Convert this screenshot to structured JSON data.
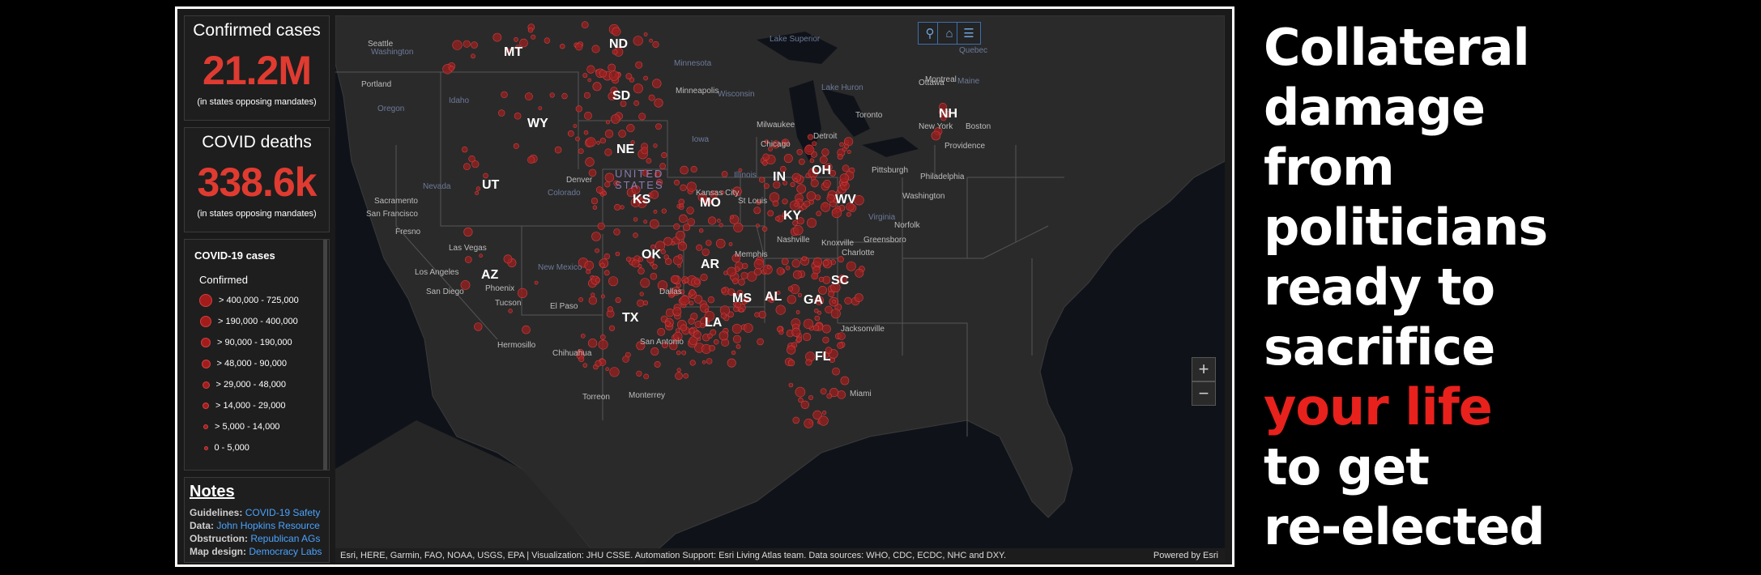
{
  "stats": {
    "confirmed": {
      "label": "Confirmed cases",
      "value": "21.2M",
      "sub": "(in states opposing mandates)"
    },
    "deaths": {
      "label": "COVID deaths",
      "value": "338.6k",
      "sub": "(in states opposing mandates)"
    }
  },
  "legend": {
    "title": "COVID-19 cases",
    "subtitle": "Confirmed",
    "items": [
      {
        "label": "> 400,000 - 725,000"
      },
      {
        "label": "> 190,000 - 400,000"
      },
      {
        "label": "> 90,000 - 190,000"
      },
      {
        "label": "> 48,000 - 90,000"
      },
      {
        "label": "> 29,000 - 48,000"
      },
      {
        "label": "> 14,000 - 29,000"
      },
      {
        "label": "> 5,000 - 14,000"
      },
      {
        "label": "0 - 5,000"
      }
    ]
  },
  "notes": {
    "title": "Notes",
    "rows": [
      {
        "key": "Guidelines:",
        "value": "COVID-19 Safety"
      },
      {
        "key": "Data:",
        "value": "John Hopkins Resource"
      },
      {
        "key": "Obstruction:",
        "value": "Republican AGs"
      },
      {
        "key": "Map design:",
        "value": "Democracy Labs"
      }
    ]
  },
  "map": {
    "country_label": [
      "UNITED",
      "STATES"
    ],
    "state_labels": [
      "MT",
      "ND",
      "SD",
      "WY",
      "NE",
      "UT",
      "KS",
      "MO",
      "IN",
      "OH",
      "WV",
      "KY",
      "OK",
      "AR",
      "AZ",
      "TX",
      "MS",
      "AL",
      "GA",
      "SC",
      "LA",
      "FL",
      "NH"
    ],
    "city_labels": [
      "Seattle",
      "Portland",
      "Sacramento",
      "San Francisco",
      "Fresno",
      "Las Vegas",
      "Los Angeles",
      "San Diego",
      "Phoenix",
      "Tucson",
      "Denver",
      "Minneapolis",
      "Milwaukee",
      "Chicago",
      "Detroit",
      "Toronto",
      "Ottawa",
      "Montreal",
      "Boston",
      "New York",
      "Philadelphia",
      "Pittsburgh",
      "Washington",
      "Norfolk",
      "Greensboro",
      "Charlotte",
      "Nashville",
      "Knoxville",
      "Memphis",
      "Kansas City",
      "St Louis",
      "Dallas",
      "San Antonio",
      "Jacksonville",
      "Miami",
      "Hermosillo",
      "Chihuahua",
      "Torreon",
      "Monterrey",
      "El Paso",
      "Providence"
    ],
    "region_labels": [
      "Washington",
      "Oregon",
      "Idaho",
      "Nevada",
      "Colorado",
      "New Mexico",
      "Minnesota",
      "Wisconsin",
      "Iowa",
      "Illinois",
      "Virginia",
      "Lake Superior",
      "Lake Huron",
      "Quebec",
      "Maine"
    ],
    "attribution": "Esri, HERE, Garmin, FAO, NOAA, USGS, EPA | Visualization: JHU CSSE. Automation Support: Esri Living Atlas team. Data sources: WHO, CDC, ECDC, NHC and DXY.",
    "powered_by": "Powered by Esri",
    "zoom_in": "+",
    "zoom_out": "−",
    "toolbar_icons": [
      "search-icon",
      "home-icon",
      "list-icon"
    ]
  },
  "headline": {
    "lines": [
      "Collateral",
      "damage",
      "from",
      "politicians",
      "ready to",
      "sacrifice",
      "your life",
      "to get",
      "re-elected"
    ],
    "highlight_line": "your life",
    "highlight_color": "#e8211d"
  },
  "colors": {
    "accent_red": "#e03b31",
    "link_blue": "#4aa3ff",
    "dot_red": "#a31c1c"
  }
}
